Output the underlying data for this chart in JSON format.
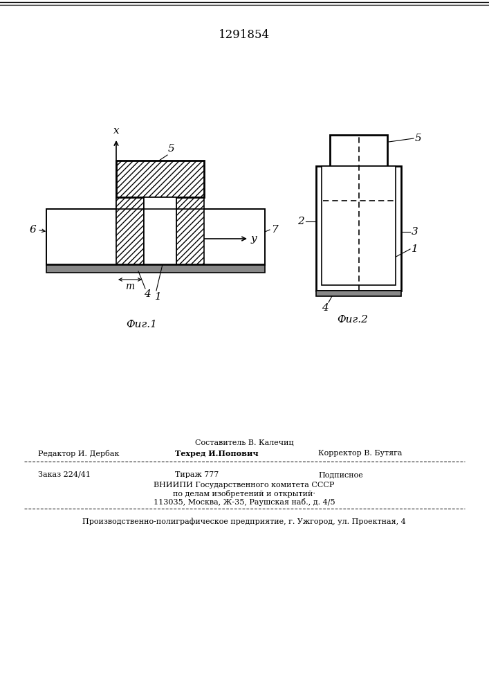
{
  "title": "1291854",
  "bg_color": "#ffffff",
  "line_color": "#000000",
  "fig1_caption": "Фиг.1",
  "fig2_caption": "Фиг.2",
  "footer": {
    "line1": "Составитель В. Калечиц",
    "line2_left": "Редактор И. Дербак",
    "line2_mid": "Техред И.Попович",
    "line2_right": "Корректор В. Бутяга",
    "line3_left": "Заказ 224/41",
    "line3_mid": "Тираж 777",
    "line3_right": "Подписное",
    "line4": "ВНИИПИ Государственного комитета СССР",
    "line5": "по делам изобретений и открытий·",
    "line6": "113035, Москва, Ж-35, Раушская наб., д. 4/5",
    "line7": "Производственно-полиграфическое предприятие, г. Ужгород, ул. Проектная, 4"
  }
}
